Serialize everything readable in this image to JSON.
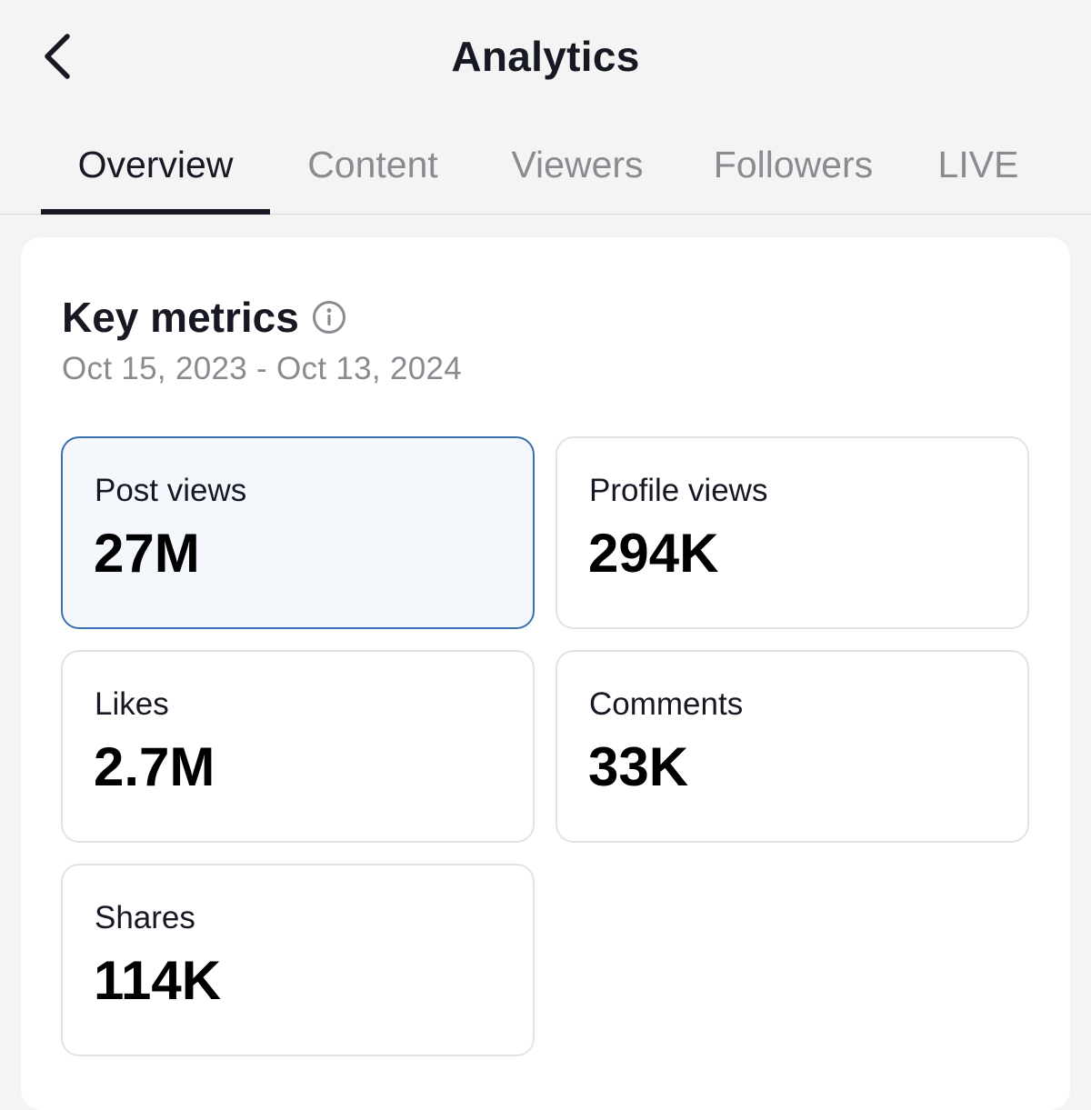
{
  "header": {
    "title": "Analytics",
    "back_icon": "chevron-left-icon"
  },
  "tabs": [
    {
      "label": "Overview",
      "active": true
    },
    {
      "label": "Content",
      "active": false
    },
    {
      "label": "Viewers",
      "active": false
    },
    {
      "label": "Followers",
      "active": false
    },
    {
      "label": "LIVE",
      "active": false
    }
  ],
  "key_metrics": {
    "title": "Key metrics",
    "info_icon": "info-icon",
    "date_range": "Oct 15, 2023 - Oct 13, 2024",
    "items": [
      {
        "label": "Post views",
        "value": "27M",
        "selected": true
      },
      {
        "label": "Profile views",
        "value": "294K",
        "selected": false
      },
      {
        "label": "Likes",
        "value": "2.7M",
        "selected": false
      },
      {
        "label": "Comments",
        "value": "33K",
        "selected": false
      },
      {
        "label": "Shares",
        "value": "114K",
        "selected": false
      }
    ]
  },
  "colors": {
    "background": "#f4f4f4",
    "card": "#ffffff",
    "text_primary": "#161823",
    "text_secondary": "#8a8b91",
    "selected_border": "#3a6fae",
    "selected_fill": "#f4f8fc"
  }
}
